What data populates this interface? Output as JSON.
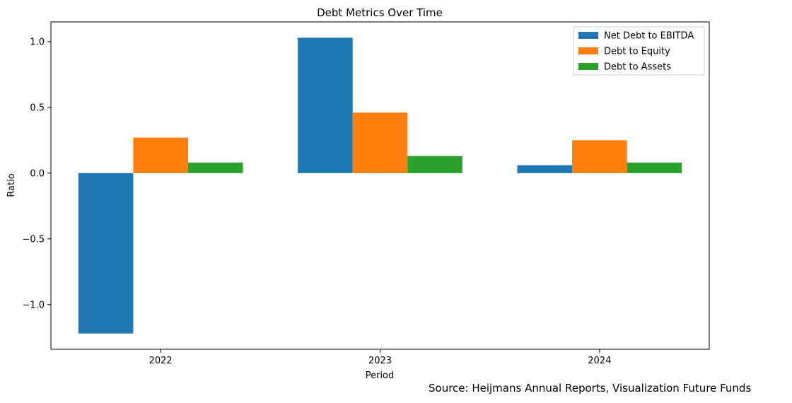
{
  "chart_data": {
    "type": "bar",
    "title": "Debt Metrics Over Time",
    "xlabel": "Period",
    "ylabel": "Ratio",
    "categories": [
      "2022",
      "2023",
      "2024"
    ],
    "series": [
      {
        "name": "Net Debt to EBITDA",
        "color": "#1f77b4",
        "values": [
          -1.22,
          1.03,
          0.06
        ]
      },
      {
        "name": "Debt to Equity",
        "color": "#ff7f0e",
        "values": [
          0.27,
          0.46,
          0.25
        ]
      },
      {
        "name": "Debt to Assets",
        "color": "#2ca02c",
        "values": [
          0.08,
          0.13,
          0.08
        ]
      }
    ],
    "ylim": [
      -1.34,
      1.15
    ],
    "yticks": [
      -1.0,
      -0.5,
      0.0,
      0.5,
      1.0
    ],
    "ytick_labels": [
      "−1.0",
      "−0.5",
      "0.0",
      "0.5",
      "1.0"
    ],
    "grid": false,
    "legend_position": "top-right"
  },
  "source_note": "Source: Heijmans Annual Reports, Visualization Future Funds"
}
